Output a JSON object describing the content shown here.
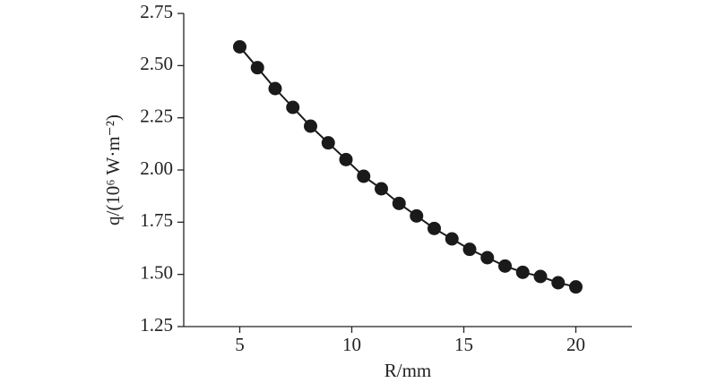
{
  "chart_data": {
    "type": "line",
    "x_label": "R/mm",
    "y_label": "q/(10⁶ W·m⁻²)",
    "x": [
      5,
      5.79,
      6.58,
      7.37,
      8.16,
      8.95,
      9.74,
      10.53,
      11.32,
      12.11,
      12.89,
      13.68,
      14.47,
      15.26,
      16.05,
      16.84,
      17.63,
      18.42,
      19.21,
      20
    ],
    "series": [
      {
        "color": "#1a1a1a",
        "values": [
          2.59,
          2.49,
          2.39,
          2.3,
          2.21,
          2.13,
          2.05,
          1.97,
          1.91,
          1.84,
          1.78,
          1.72,
          1.67,
          1.62,
          1.58,
          1.54,
          1.51,
          1.49,
          1.46,
          1.44
        ]
      }
    ],
    "xlim": [
      2.5,
      22.5
    ],
    "xticks": [
      5,
      10,
      15,
      20
    ],
    "ylim": [
      1.25,
      2.75
    ],
    "yticks": [
      {
        "value": 1.25,
        "label": "1.25"
      },
      {
        "value": 1.5,
        "label": "1.50"
      },
      {
        "value": 1.75,
        "label": "1.75"
      },
      {
        "value": 2.0,
        "label": "2.00"
      },
      {
        "value": 2.25,
        "label": "2.25"
      },
      {
        "value": 2.5,
        "label": "2.50"
      },
      {
        "value": 2.75,
        "label": "2.75"
      }
    ]
  }
}
